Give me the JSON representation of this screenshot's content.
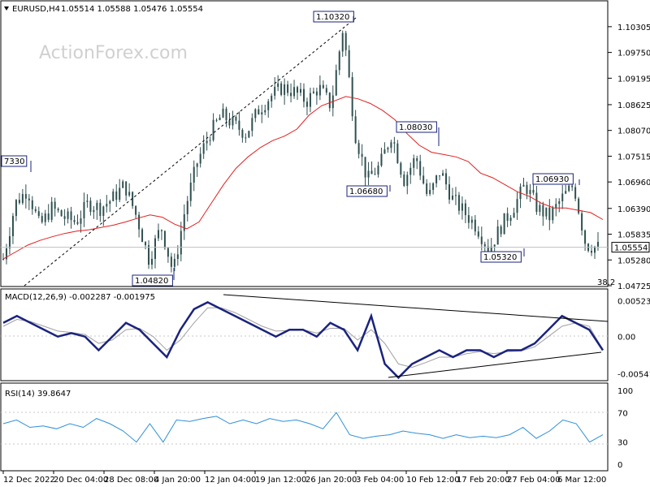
{
  "header": {
    "symbol": "EURUSD,H4",
    "ohlc": "1.05514 1.05588 1.05476 1.05554",
    "watermark": "ActionForex.com"
  },
  "colors": {
    "candle": "#2f4f4f",
    "ma": "#e02020",
    "macd": "#1a237e",
    "signal": "#a0a0a0",
    "rsi": "#2e8fd8",
    "annotation_box": "#1a237e",
    "trendline": "#000000"
  },
  "chart_data": [
    {
      "type": "candlestick",
      "ylim": [
        1.04725,
        1.1053
      ],
      "ytick_labels": [
        "1.10305",
        "1.09750",
        "1.09195",
        "1.08625",
        "1.08070",
        "1.07515",
        "1.06960",
        "1.06390",
        "1.05835",
        "1.05280",
        "1.04725"
      ],
      "ytick_values": [
        1.10305,
        1.0975,
        1.09195,
        1.08625,
        1.0807,
        1.07515,
        1.0696,
        1.0639,
        1.05835,
        1.0528,
        1.04725
      ],
      "xtick_labels": [
        "12 Dec 2022",
        "20 Dec 04:00",
        "28 Dec 08:00",
        "4 Jan 20:00",
        "12 Jan 04:00",
        "19 Jan 12:00",
        "26 Jan 20:00",
        "3 Feb 04:00",
        "10 Feb 12:00",
        "17 Feb 20:00",
        "27 Feb 04:00",
        "6 Mar 12:00"
      ],
      "last_price": "1.05554",
      "last_value": 1.05554,
      "fib_label": "38.2",
      "ma_path": [
        1.053,
        1.0545,
        1.056,
        1.057,
        1.0578,
        1.0585,
        1.059,
        1.0593,
        1.0598,
        1.0603,
        1.061,
        1.0618,
        1.0625,
        1.062,
        1.0605,
        1.0595,
        1.061,
        1.065,
        1.069,
        1.0725,
        1.075,
        1.077,
        1.0785,
        1.0795,
        1.081,
        1.084,
        1.086,
        1.087,
        1.088,
        1.0875,
        1.0865,
        1.085,
        1.083,
        1.08,
        1.0775,
        1.076,
        1.0755,
        1.075,
        1.074,
        1.0715,
        1.0705,
        1.069,
        1.0675,
        1.0665,
        1.065,
        1.064,
        1.064,
        1.0635,
        1.063,
        1.0615
      ],
      "price_path": [
        1.053,
        1.065,
        1.068,
        1.06,
        1.064,
        1.062,
        1.061,
        1.065,
        1.064,
        1.066,
        1.069,
        1.062,
        1.053,
        1.06,
        1.05,
        1.064,
        1.074,
        1.08,
        1.084,
        1.082,
        1.08,
        1.085,
        1.088,
        1.09,
        1.089,
        1.087,
        1.09,
        1.086,
        1.103,
        1.08,
        1.07,
        1.073,
        1.08,
        1.07,
        1.075,
        1.066,
        1.072,
        1.066,
        1.063,
        1.06,
        1.055,
        1.06,
        1.064,
        1.069,
        1.064,
        1.062,
        1.066,
        1.069,
        1.056,
        1.0555
      ],
      "annotations": [
        {
          "label": "1.10320",
          "value": 1.1032
        },
        {
          "label": "1.08030",
          "value": 1.0803
        },
        {
          "label": "1.06680",
          "value": 1.0668
        },
        {
          "label": "1.06930",
          "value": 1.0693
        },
        {
          "label": "1.05320",
          "value": 1.0532
        },
        {
          "label": "1.04820",
          "value": 1.0482
        },
        {
          "label": "7330",
          "value": 1.0733
        }
      ]
    },
    {
      "type": "line",
      "title": "MACD(12,26,9) -0.002287 -0.001975",
      "ylim": [
        -0.0062,
        0.006
      ],
      "ytick_labels": [
        "0.005236",
        "0.00",
        "-0.005416"
      ],
      "ytick_values": [
        0.005236,
        0.0,
        -0.005416
      ],
      "series": [
        {
          "values": [
            0.002,
            0.003,
            0.002,
            0.001,
            0.0,
            0.0005,
            0.0,
            -0.002,
            0.0,
            0.002,
            0.001,
            -0.001,
            -0.003,
            0.001,
            0.004,
            0.005,
            0.004,
            0.003,
            0.002,
            0.001,
            0.0,
            0.001,
            0.001,
            0.0,
            0.002,
            0.001,
            -0.002,
            0.003,
            -0.004,
            -0.006,
            -0.004,
            -0.003,
            -0.002,
            -0.003,
            -0.002,
            -0.002,
            -0.003,
            -0.002,
            -0.002,
            -0.001,
            0.001,
            0.003,
            0.002,
            0.001,
            -0.002
          ]
        },
        {
          "values": [
            0.0015,
            0.0025,
            0.0022,
            0.0015,
            0.0008,
            0.0006,
            0.0003,
            -0.001,
            -0.0005,
            0.001,
            0.0012,
            0.0,
            -0.002,
            -0.0005,
            0.002,
            0.0042,
            0.0042,
            0.0035,
            0.0025,
            0.0015,
            0.0008,
            0.0009,
            0.001,
            0.0005,
            0.0012,
            0.0012,
            -0.0005,
            0.001,
            -0.001,
            -0.004,
            -0.0045,
            -0.0038,
            -0.003,
            -0.003,
            -0.0025,
            -0.0022,
            -0.0025,
            -0.0022,
            -0.0021,
            -0.0015,
            0.0,
            0.0015,
            0.002,
            0.0015,
            -0.0019
          ]
        }
      ]
    },
    {
      "type": "line",
      "title": "RSI(14) 39.8647",
      "ylim": [
        0,
        100
      ],
      "ytick_labels": [
        "100",
        "70",
        "30",
        "0"
      ],
      "ytick_values": [
        100,
        70,
        30,
        0
      ],
      "series": [
        {
          "values": [
            55,
            60,
            50,
            52,
            48,
            55,
            50,
            62,
            55,
            45,
            30,
            55,
            30,
            60,
            58,
            62,
            65,
            55,
            60,
            55,
            62,
            58,
            60,
            55,
            48,
            70,
            40,
            35,
            38,
            40,
            45,
            42,
            40,
            35,
            40,
            36,
            38,
            36,
            40,
            50,
            35,
            45,
            60,
            55,
            30,
            40
          ]
        }
      ]
    }
  ]
}
